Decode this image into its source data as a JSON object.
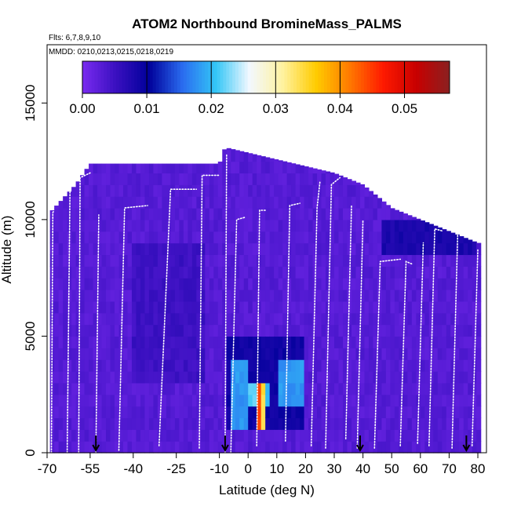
{
  "chart_data": {
    "type": "heatmap",
    "title": "ATOM2 Northbound BromineMass_PALMS",
    "annotations": {
      "flights": "Flts: 6,7,8,9,10",
      "dates": "MMDD: 0210,0213,0215,0218,0219"
    },
    "xlabel": "Latitude (deg N)",
    "ylabel": "Altitude (m)",
    "xlim": [
      -70,
      83
    ],
    "ylim": [
      0,
      17500
    ],
    "x_ticks": [
      -70,
      -55,
      -40,
      -25,
      -10,
      0,
      10,
      20,
      30,
      40,
      50,
      60,
      70,
      80
    ],
    "x_tick_labels": [
      "-70",
      "-55",
      "-40",
      "-25",
      "-10",
      "0",
      "10",
      "20",
      "30",
      "40",
      "50",
      "60",
      "70",
      "80"
    ],
    "y_ticks": [
      0,
      5000,
      10000,
      15000
    ],
    "y_tick_labels": [
      "0",
      "5000",
      "10000",
      "15000"
    ],
    "colorbar": {
      "range": [
        0,
        0.057
      ],
      "ticks": [
        0.0,
        0.01,
        0.02,
        0.03,
        0.04,
        0.05
      ],
      "tick_labels": [
        "0.00",
        "0.01",
        "0.02",
        "0.03",
        "0.04",
        "0.05"
      ],
      "colors": [
        "#7a2bf0",
        "#3a10c0",
        "#00009a",
        "#2a6cf0",
        "#33c6f6",
        "#f2f8ff",
        "#fff2a0",
        "#ffcc00",
        "#ff7a00",
        "#ff1a00",
        "#c80000",
        "#8a2020"
      ]
    },
    "background_value": 0.003,
    "high_value_regions": [
      {
        "x": [
          -8,
          20
        ],
        "y": [
          800,
          5200
        ],
        "value": 0.009
      },
      {
        "x": [
          -6,
          0
        ],
        "y": [
          1200,
          4000
        ],
        "value": 0.018
      },
      {
        "x": [
          0,
          3
        ],
        "y": [
          2000,
          3000
        ],
        "value": 0.022
      },
      {
        "x": [
          3,
          4.5
        ],
        "y": [
          1000,
          3000
        ],
        "value": 0.045
      },
      {
        "x": [
          4.5,
          6
        ],
        "y": [
          1000,
          3000
        ],
        "value": 0.034
      },
      {
        "x": [
          6,
          8
        ],
        "y": [
          1800,
          3000
        ],
        "value": 0.02
      },
      {
        "x": [
          11,
          19
        ],
        "y": [
          2000,
          4000
        ],
        "value": 0.018
      },
      {
        "x": [
          47,
          80
        ],
        "y": [
          8500,
          10200
        ],
        "value": 0.008
      },
      {
        "x": [
          -40,
          -15
        ],
        "y": [
          3000,
          9000
        ],
        "value": 0.005
      }
    ],
    "flight_markers_latitude": [
      -53,
      -8,
      39,
      76
    ],
    "ceiling_profile": [
      {
        "lat": -69,
        "alt": 10300
      },
      {
        "lat": -60,
        "alt": 11500
      },
      {
        "lat": -55,
        "alt": 12400
      },
      {
        "lat": -10,
        "alt": 12400
      },
      {
        "lat": -8,
        "alt": 13100
      },
      {
        "lat": 30,
        "alt": 12000
      },
      {
        "lat": 40,
        "alt": 11500
      },
      {
        "lat": 50,
        "alt": 10500
      },
      {
        "lat": 60,
        "alt": 10000
      },
      {
        "lat": 70,
        "alt": 9500
      },
      {
        "lat": 80,
        "alt": 9000
      }
    ],
    "flight_tracks": [
      {
        "lat": [
          -68.5,
          -68,
          -67.5
        ],
        "alt": [
          0,
          10300,
          10400
        ]
      },
      {
        "lat": [
          -63,
          -62
        ],
        "alt": [
          0,
          11500
        ]
      },
      {
        "lat": [
          -59,
          -58.5,
          -55
        ],
        "alt": [
          0,
          11800,
          12000
        ]
      },
      {
        "lat": [
          -53,
          -52
        ],
        "alt": [
          0,
          10200
        ]
      },
      {
        "lat": [
          -45,
          -43,
          -35
        ],
        "alt": [
          100,
          10500,
          10600
        ]
      },
      {
        "lat": [
          -31,
          -27,
          -18
        ],
        "alt": [
          300,
          11300,
          11300
        ]
      },
      {
        "lat": [
          -17,
          -16,
          -10
        ],
        "alt": [
          200,
          11900,
          11900
        ]
      },
      {
        "lat": [
          -8,
          -7.5
        ],
        "alt": [
          0,
          12800
        ]
      },
      {
        "lat": [
          -6,
          -4,
          -1
        ],
        "alt": [
          0,
          10000,
          10100
        ]
      },
      {
        "lat": [
          3,
          4,
          6
        ],
        "alt": [
          300,
          10400,
          10400
        ]
      },
      {
        "lat": [
          13,
          14.5,
          18
        ],
        "alt": [
          500,
          10600,
          10700
        ]
      },
      {
        "lat": [
          22,
          24,
          25
        ],
        "alt": [
          300,
          10500,
          11600
        ]
      },
      {
        "lat": [
          27,
          29,
          32
        ],
        "alt": [
          200,
          11500,
          11800
        ]
      },
      {
        "lat": [
          34,
          36
        ],
        "alt": [
          600,
          10600
        ]
      },
      {
        "lat": [
          38,
          40
        ],
        "alt": [
          200,
          10000
        ]
      },
      {
        "lat": [
          44,
          46,
          53
        ],
        "alt": [
          200,
          8200,
          8300
        ]
      },
      {
        "lat": [
          53,
          55,
          57
        ],
        "alt": [
          300,
          8200,
          8100
        ]
      },
      {
        "lat": [
          59,
          61
        ],
        "alt": [
          400,
          9000
        ]
      },
      {
        "lat": [
          63,
          65,
          68
        ],
        "alt": [
          300,
          9600,
          9500
        ]
      },
      {
        "lat": [
          71,
          73,
          76
        ],
        "alt": [
          200,
          9500,
          9400
        ]
      },
      {
        "lat": [
          78,
          80
        ],
        "alt": [
          300,
          8700
        ]
      }
    ]
  }
}
